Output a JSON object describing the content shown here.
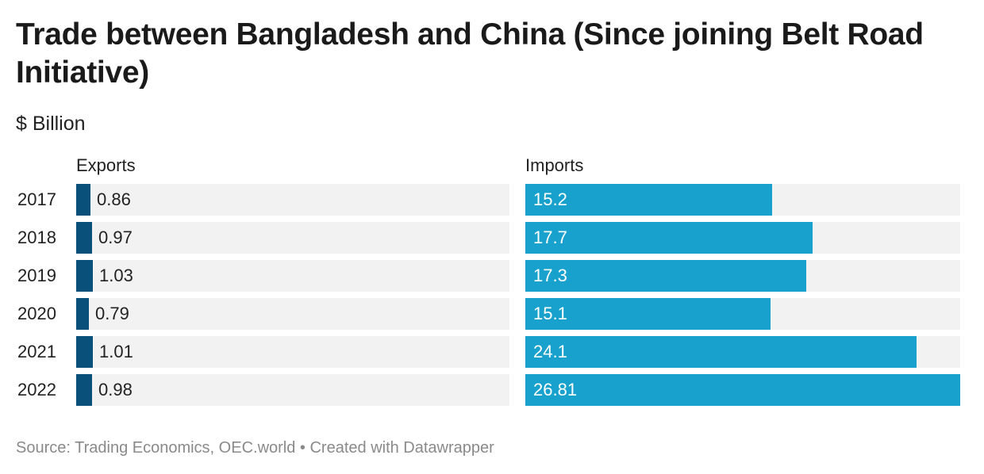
{
  "title": "Trade between Bangladesh and China (Since joining Belt Road Initiative)",
  "subtitle": "$ Billion",
  "source": "Source: Trading Economics, OEC.world • Created with Datawrapper",
  "colors": {
    "exports": "#09507a",
    "imports": "#18a1cd",
    "track": "#f2f2f2"
  },
  "chart_data": {
    "type": "bar",
    "orientation": "horizontal",
    "title": "Trade between Bangladesh and China (Since joining Belt Road Initiative)",
    "subtitle": "$ Billion",
    "categories": [
      "2017",
      "2018",
      "2019",
      "2020",
      "2021",
      "2022"
    ],
    "series": [
      {
        "name": "Exports",
        "values": [
          0.86,
          0.97,
          1.03,
          0.79,
          1.01,
          0.98
        ],
        "labels": [
          "0.86",
          "0.97",
          "1.03",
          "0.79",
          "1.01",
          "0.98"
        ],
        "xlim": [
          0,
          26.81
        ]
      },
      {
        "name": "Imports",
        "values": [
          15.2,
          17.7,
          17.3,
          15.1,
          24.1,
          26.81
        ],
        "labels": [
          "15.2",
          "17.7",
          "17.3",
          "15.1",
          "24.1",
          "26.81"
        ],
        "xlim": [
          0,
          26.81
        ]
      }
    ],
    "grid": false,
    "legend": "column headers"
  }
}
